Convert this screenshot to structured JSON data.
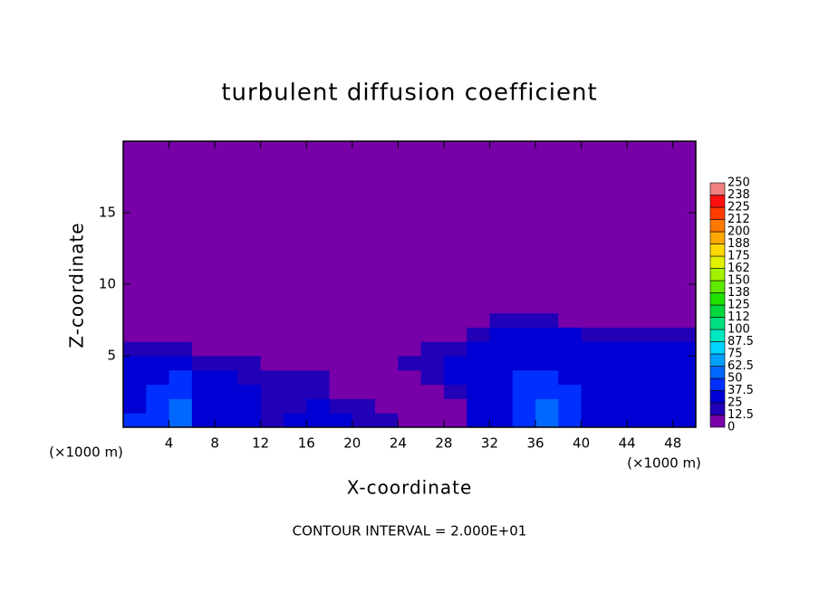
{
  "chart_data": {
    "type": "contour",
    "title": "turbulent diffusion coefficient",
    "xlabel": "X-coordinate",
    "ylabel": "Z-coordinate",
    "x_unit_labels": [
      "(×1000 m)",
      "(×1000 m)"
    ],
    "annotation": "CONTOUR INTERVAL = 2.000E+01",
    "xlim": [
      0,
      50
    ],
    "ylim": [
      0,
      20
    ],
    "xticks": [
      4,
      8,
      12,
      16,
      20,
      24,
      28,
      32,
      36,
      40,
      44,
      48
    ],
    "yticks": [
      5,
      10,
      15
    ],
    "x": [
      1,
      3,
      5,
      7,
      9,
      11,
      13,
      15,
      17,
      19,
      21,
      23,
      25,
      27,
      29,
      31,
      33,
      35,
      37,
      39,
      41,
      43,
      45,
      47,
      49
    ],
    "y": [
      0.5,
      1.5,
      2.5,
      3.5,
      4.5,
      5.5,
      6.5,
      7.5,
      8.5
    ],
    "z": [
      [
        40,
        45,
        60,
        35,
        30,
        25,
        20,
        25,
        30,
        35,
        20,
        15,
        5,
        5,
        10,
        30,
        35,
        40,
        55,
        40,
        35,
        35,
        30,
        35,
        35
      ],
      [
        35,
        45,
        55,
        35,
        30,
        25,
        20,
        20,
        25,
        15,
        15,
        10,
        5,
        5,
        10,
        30,
        35,
        40,
        50,
        40,
        35,
        35,
        30,
        35,
        30
      ],
      [
        35,
        40,
        45,
        35,
        30,
        25,
        20,
        20,
        15,
        10,
        10,
        10,
        5,
        10,
        20,
        30,
        35,
        40,
        45,
        40,
        35,
        35,
        30,
        30,
        30
      ],
      [
        30,
        35,
        40,
        35,
        25,
        20,
        15,
        15,
        15,
        10,
        10,
        10,
        10,
        20,
        25,
        30,
        35,
        40,
        40,
        35,
        30,
        30,
        30,
        30,
        30
      ],
      [
        30,
        30,
        25,
        20,
        15,
        15,
        10,
        10,
        10,
        5,
        5,
        10,
        15,
        20,
        25,
        30,
        30,
        35,
        35,
        30,
        30,
        30,
        30,
        30,
        30
      ],
      [
        20,
        15,
        15,
        10,
        10,
        10,
        5,
        5,
        5,
        5,
        5,
        5,
        10,
        15,
        20,
        25,
        25,
        30,
        30,
        30,
        25,
        25,
        25,
        25,
        25
      ],
      [
        5,
        5,
        10,
        10,
        5,
        5,
        5,
        0,
        0,
        0,
        0,
        0,
        0,
        5,
        10,
        20,
        25,
        30,
        25,
        25,
        20,
        20,
        20,
        20,
        15
      ],
      [
        0,
        0,
        0,
        0,
        0,
        0,
        0,
        0,
        0,
        0,
        0,
        0,
        0,
        0,
        0,
        10,
        15,
        20,
        15,
        10,
        5,
        0,
        0,
        0,
        0
      ],
      [
        0,
        0,
        0,
        0,
        0,
        0,
        0,
        0,
        0,
        0,
        0,
        0,
        0,
        0,
        0,
        0,
        0,
        10,
        5,
        0,
        0,
        0,
        0,
        0,
        0
      ]
    ],
    "colorbar": {
      "levels": [
        0,
        12.5,
        25,
        37.5,
        50,
        62.5,
        75,
        87.5,
        100,
        {
          "value": 112.5,
          "label": "112"
        },
        125,
        {
          "value": 137.5,
          "label": "138"
        },
        150,
        {
          "value": 162.5,
          "label": "162"
        },
        175,
        {
          "value": 187.5,
          "label": "188"
        },
        200,
        {
          "value": 212.5,
          "label": "212"
        },
        225,
        {
          "value": 237.5,
          "label": "238"
        },
        250
      ],
      "colors": [
        "#7700a8",
        "#2200b8",
        "#0000d4",
        "#0030ff",
        "#0068ff",
        "#00a0ff",
        "#00d4ff",
        "#00e8c0",
        "#00e080",
        "#00d840",
        "#20e000",
        "#60e800",
        "#a0f000",
        "#e0f000",
        "#ffd800",
        "#ffa800",
        "#ff7800",
        "#ff3c00",
        "#ff1010",
        "#f08080"
      ]
    }
  }
}
